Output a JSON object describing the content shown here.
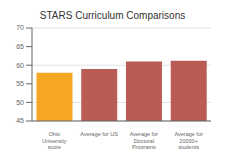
{
  "chart_data": {
    "type": "bar",
    "title": "STARS Curriculum Comparisons",
    "categories": [
      "Ohio University\nscore",
      "Average for US",
      "Average for\nDoctoral Programs",
      "Average for\n20000+ students"
    ],
    "values": [
      58,
      59,
      61,
      61.2
    ],
    "colors": [
      "#f5a623",
      "#b85c55",
      "#b85c55",
      "#b85c55"
    ],
    "ylim": [
      45,
      70
    ],
    "yticks": [
      45,
      50,
      55,
      60,
      65,
      70
    ],
    "grid": true
  }
}
